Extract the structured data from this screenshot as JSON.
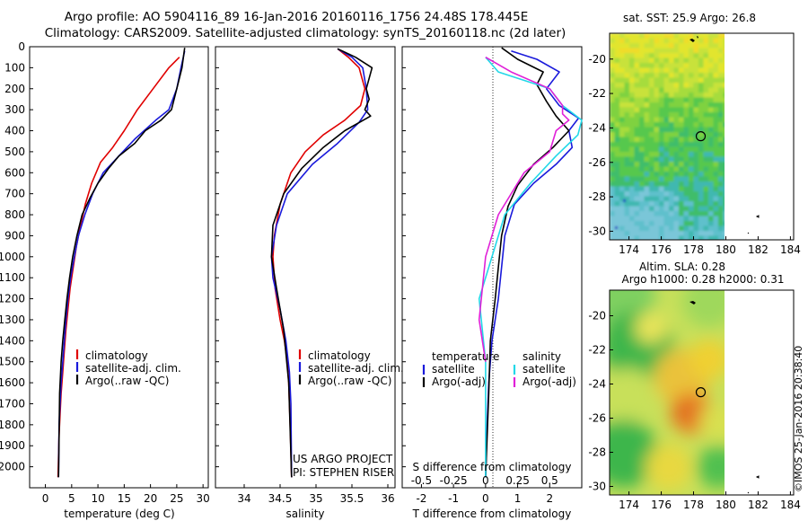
{
  "header": {
    "line1": "Argo profile: AO 5904116_89 16-Jan-2016 20160116_1756 24.48S 178.445E",
    "line2": "Climatology: CARS2009. Satellite-adjusted climatology: synTS_20160118.nc (2d later)"
  },
  "credit": {
    "line1": "US ARGO PROJECT",
    "line2": "PI: STEPHEN RISER"
  },
  "stamp": "©IMOS 25-Jan-2016 20:38:40",
  "colors": {
    "climatology": "#e00000",
    "satellite": "#1a1adb",
    "argo": "#000000",
    "sat_salinity": "#22d8e8",
    "argo_salinity": "#e020d8"
  },
  "chart_data": [
    {
      "type": "line",
      "xlabel": "temperature (deg C)",
      "ylabel": "",
      "xlim": [
        -3,
        31
      ],
      "ylim": [
        2100,
        0
      ],
      "xticks": [
        0,
        5,
        10,
        15,
        20,
        25,
        30
      ],
      "yticks": [
        0,
        100,
        200,
        300,
        400,
        500,
        600,
        700,
        800,
        900,
        1000,
        1100,
        1200,
        1300,
        1400,
        1500,
        1600,
        1700,
        1800,
        1900,
        2000
      ],
      "legend": [
        "climatology",
        "satellite-adj. clim.",
        "Argo(..raw -QC)"
      ],
      "series": [
        {
          "name": "climatology",
          "color": "#e00000",
          "x": [
            25.5,
            23.5,
            20.5,
            17.5,
            15.0,
            12.8,
            10.5,
            8.8,
            7.6,
            6.7,
            5.9,
            5.3,
            4.7,
            4.3,
            3.9,
            3.6,
            3.3,
            3.0,
            2.8,
            2.6,
            2.4
          ],
          "y": [
            50,
            100,
            200,
            300,
            400,
            480,
            550,
            650,
            750,
            850,
            950,
            1050,
            1150,
            1250,
            1350,
            1450,
            1550,
            1650,
            1750,
            1850,
            2050
          ]
        },
        {
          "name": "satellite-adj. clim.",
          "color": "#1a1adb",
          "x": [
            26.5,
            25.8,
            25.0,
            23.5,
            21.0,
            17.0,
            14.0,
            11.0,
            9.0,
            7.5,
            6.3,
            5.5,
            4.8,
            4.3,
            3.9,
            3.6,
            3.3,
            3.0,
            2.8,
            2.6,
            2.5
          ],
          "y": [
            20,
            100,
            200,
            300,
            350,
            440,
            520,
            600,
            700,
            800,
            900,
            1000,
            1100,
            1200,
            1300,
            1400,
            1500,
            1600,
            1700,
            1800,
            2050
          ]
        },
        {
          "name": "Argo(..raw -QC)",
          "color": "#000000",
          "x": [
            26.5,
            26.0,
            25.0,
            24.0,
            22.0,
            19.0,
            17.0,
            14.0,
            12.0,
            10.0,
            8.5,
            7.0,
            6.0,
            5.2,
            4.6,
            4.1,
            3.7,
            3.3,
            3.0,
            2.7,
            2.5
          ],
          "y": [
            5,
            100,
            200,
            300,
            350,
            400,
            460,
            520,
            580,
            650,
            720,
            800,
            900,
            1000,
            1100,
            1200,
            1300,
            1400,
            1500,
            1650,
            2050
          ]
        }
      ]
    },
    {
      "type": "line",
      "xlabel": "salinity",
      "ylabel": "",
      "xlim": [
        33.6,
        36.1
      ],
      "ylim": [
        2100,
        0
      ],
      "xticks": [
        34,
        34.5,
        35,
        35.5,
        36
      ],
      "legend": [
        "climatology",
        "satellite-adj. clim.",
        "Argo(..raw -QC)"
      ],
      "series": [
        {
          "name": "climatology",
          "color": "#e00000",
          "x": [
            35.3,
            35.45,
            35.6,
            35.68,
            35.62,
            35.4,
            35.1,
            34.85,
            34.65,
            34.5,
            34.42,
            34.4,
            34.43,
            34.5,
            34.56,
            34.6,
            34.62,
            34.64,
            34.66
          ],
          "y": [
            10,
            50,
            100,
            200,
            280,
            350,
            420,
            500,
            600,
            750,
            900,
            1000,
            1150,
            1300,
            1400,
            1500,
            1600,
            1800,
            2050
          ]
        },
        {
          "name": "satellite-adj. clim.",
          "color": "#1a1adb",
          "x": [
            35.3,
            35.5,
            35.65,
            35.7,
            35.72,
            35.6,
            35.3,
            34.95,
            34.6,
            34.45,
            34.38,
            34.4,
            34.5,
            34.58,
            34.63,
            34.65,
            34.66
          ],
          "y": [
            10,
            50,
            100,
            200,
            300,
            360,
            460,
            560,
            700,
            850,
            1000,
            1100,
            1250,
            1400,
            1550,
            1700,
            2050
          ]
        },
        {
          "name": "Argo(..raw -QC)",
          "color": "#000000",
          "x": [
            35.3,
            35.55,
            35.78,
            35.7,
            35.74,
            35.68,
            35.76,
            35.4,
            35.1,
            34.8,
            34.55,
            34.4,
            34.38,
            34.45,
            34.55,
            34.62,
            34.66
          ],
          "y": [
            10,
            50,
            100,
            200,
            250,
            300,
            330,
            400,
            480,
            580,
            700,
            850,
            1000,
            1150,
            1350,
            1600,
            2050
          ]
        }
      ]
    },
    {
      "type": "line",
      "xlabel": "T difference from climatology",
      "x2label": "S difference from climatology",
      "ylabel": "",
      "xlim": [
        -2.6,
        3.0
      ],
      "ylim": [
        2100,
        0
      ],
      "xticks": [
        -2,
        -1,
        0,
        1,
        2
      ],
      "x2ticks": [
        -0.5,
        -0.25,
        0,
        0.25,
        0.5
      ],
      "legend_titles": [
        "temperature",
        "salinity"
      ],
      "legend": [
        "satellite",
        "Argo(-adj)",
        "satellite",
        "Argo(-adj)"
      ],
      "series": [
        {
          "name": "satellite",
          "quantity": "temperature",
          "color": "#1a1adb",
          "x": [
            0.8,
            1.6,
            2.3,
            1.9,
            2.3,
            2.9,
            2.6,
            2.7,
            2.2,
            1.5,
            0.9,
            0.6,
            0.5,
            0.4,
            0.2,
            0.1,
            0.05,
            0.0,
            0.0
          ],
          "y": [
            20,
            60,
            120,
            200,
            280,
            340,
            400,
            480,
            560,
            650,
            750,
            900,
            1050,
            1200,
            1400,
            1600,
            1800,
            2050,
            2050
          ]
        },
        {
          "name": "Argo(-adj)",
          "quantity": "temperature",
          "color": "#000000",
          "x": [
            0.5,
            1.0,
            1.8,
            1.6,
            1.9,
            2.2,
            2.6,
            2.1,
            1.5,
            1.0,
            0.7,
            0.5,
            0.4,
            0.3,
            0.15,
            0.1,
            0.0
          ],
          "y": [
            5,
            60,
            120,
            180,
            260,
            330,
            400,
            480,
            560,
            660,
            760,
            900,
            1050,
            1200,
            1400,
            1650,
            2050
          ]
        },
        {
          "name": "satellite",
          "quantity": "salinity",
          "color": "#22d8e8",
          "x": [
            0.0,
            0.1,
            0.5,
            0.6,
            0.75,
            0.72,
            0.55,
            0.35,
            0.15,
            0.05,
            -0.05,
            0.0,
            0.0,
            0.0
          ],
          "y": [
            50,
            120,
            200,
            280,
            350,
            420,
            520,
            650,
            800,
            1000,
            1200,
            1500,
            1800,
            2050
          ]
        },
        {
          "name": "Argo(-adj)",
          "quantity": "salinity",
          "color": "#e020d8",
          "x": [
            0.0,
            0.2,
            0.5,
            0.6,
            0.6,
            0.65,
            0.55,
            0.5,
            0.3,
            0.1,
            0.0,
            -0.05,
            0.0
          ],
          "y": [
            50,
            120,
            200,
            280,
            320,
            350,
            400,
            500,
            600,
            800,
            1000,
            1300,
            1500
          ]
        }
      ]
    }
  ],
  "maps": [
    {
      "title": "sat. SST: 25.9 Argo: 26.8",
      "xlim": [
        172.8,
        184.2
      ],
      "ylim": [
        -30.5,
        -18.5
      ],
      "xticks": [
        174,
        176,
        178,
        180,
        182,
        184
      ],
      "yticks": [
        -20,
        -22,
        -24,
        -26,
        -28,
        -30
      ],
      "marker": {
        "lon": 178.445,
        "lat": -24.48
      }
    },
    {
      "title_line1": "Altim. SLA: 0.28",
      "title_line2": "Argo h1000: 0.28 h2000: 0.31",
      "xlim": [
        172.8,
        184.2
      ],
      "ylim": [
        -30.5,
        -18.5
      ],
      "xticks": [
        174,
        176,
        178,
        180,
        182,
        184
      ],
      "yticks": [
        -20,
        -22,
        -24,
        -26,
        -28,
        -30
      ],
      "marker": {
        "lon": 178.445,
        "lat": -24.48
      }
    }
  ]
}
